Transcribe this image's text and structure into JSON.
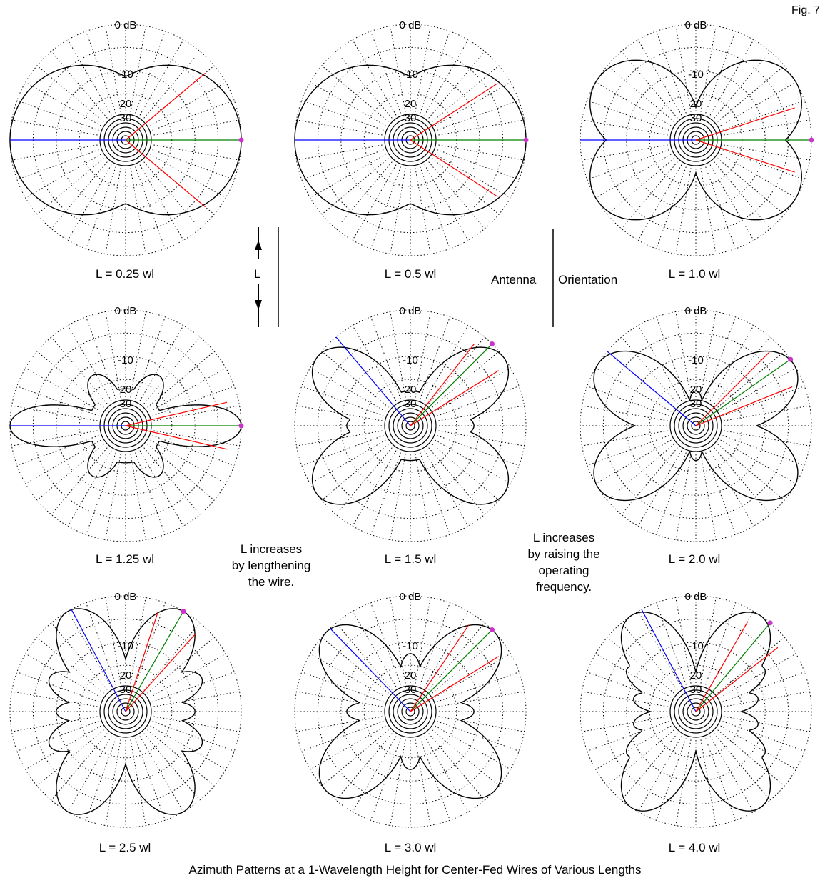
{
  "figure_label": "Fig. 7",
  "ring_labels": {
    "outer": "0 dB",
    "r10": "-10",
    "r20": "20",
    "r30": "30"
  },
  "panels": [
    {
      "label": "L = 0.25 wl"
    },
    {
      "label": "L = 0.5 wl"
    },
    {
      "label": "L = 1.0 wl"
    },
    {
      "label": "L = 1.25 wl"
    },
    {
      "label": "L = 1.5 wl"
    },
    {
      "label": "L = 2.0 wl"
    },
    {
      "label": "L = 2.5 wl"
    },
    {
      "label": "L = 3.0 wl"
    },
    {
      "label": "L = 4.0 wl"
    }
  ],
  "orientation": {
    "wire_label": "L",
    "word1": "Antenna",
    "word2": "Orientation"
  },
  "note_left": [
    "L increases",
    "by lengthening",
    "the wire."
  ],
  "note_right": [
    "L increases",
    "by raising the",
    "operating",
    "frequency."
  ],
  "caption": "Azimuth Patterns at a 1-Wavelength Height for Center-Fed Wires of Various Lengths",
  "colors": {
    "pattern": "#000000",
    "grid": "#000000",
    "blue_line": "#0000ff",
    "green_line": "#008000",
    "red_line": "#ff0000",
    "marker": "#cc33cc"
  }
}
